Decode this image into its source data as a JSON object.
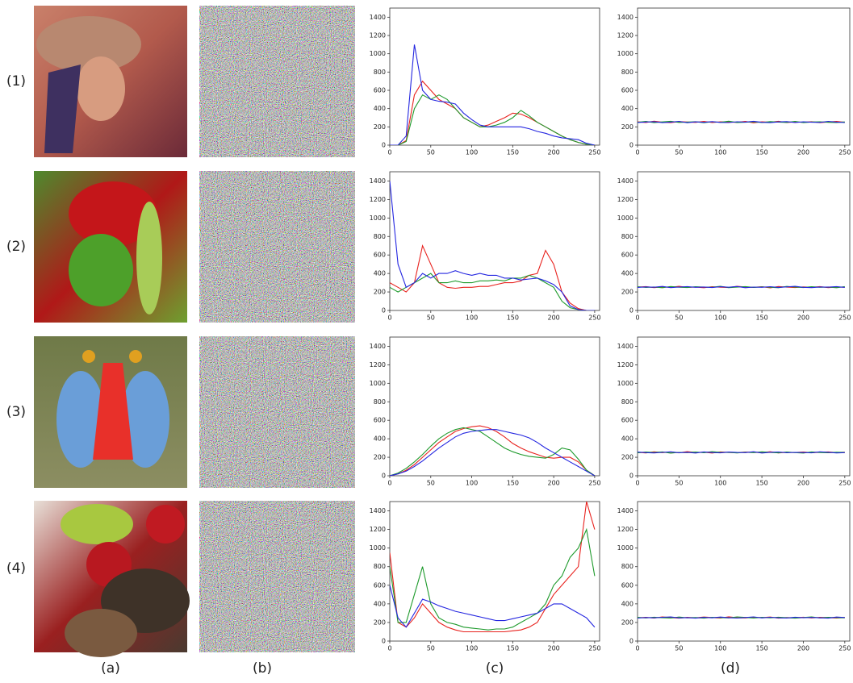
{
  "figure": {
    "row_labels": [
      "(1)",
      "(2)",
      "(3)",
      "(4)"
    ],
    "column_labels": [
      "(a)",
      "(b)",
      "(c)",
      "(d)"
    ]
  },
  "chart_data": [
    {
      "type": "line",
      "x": [
        0,
        10,
        20,
        30,
        40,
        50,
        60,
        70,
        80,
        90,
        100,
        110,
        120,
        130,
        140,
        150,
        160,
        170,
        180,
        190,
        200,
        210,
        220,
        230,
        240,
        250
      ],
      "xlim": [
        0,
        256
      ],
      "xticks": [
        0,
        50,
        100,
        150,
        200,
        250
      ],
      "ylim": [
        0,
        1500
      ],
      "yticks": [
        0,
        200,
        400,
        600,
        800,
        1000,
        1200,
        1400
      ],
      "series": [
        {
          "color": "#e8221e",
          "values": [
            0,
            0,
            50,
            550,
            700,
            600,
            500,
            450,
            400,
            300,
            250,
            200,
            220,
            260,
            300,
            350,
            340,
            300,
            250,
            200,
            150,
            100,
            60,
            30,
            10,
            0
          ]
        },
        {
          "color": "#1e9a2c",
          "values": [
            0,
            0,
            40,
            400,
            550,
            500,
            550,
            500,
            400,
            300,
            250,
            200,
            200,
            220,
            250,
            300,
            380,
            320,
            250,
            200,
            150,
            100,
            60,
            30,
            10,
            0
          ]
        },
        {
          "color": "#2426e0",
          "values": [
            0,
            0,
            100,
            1100,
            600,
            500,
            480,
            470,
            450,
            350,
            280,
            220,
            200,
            200,
            200,
            200,
            200,
            180,
            150,
            130,
            100,
            80,
            70,
            60,
            20,
            0
          ]
        }
      ]
    },
    {
      "type": "line",
      "x": [
        0,
        10,
        20,
        30,
        40,
        50,
        60,
        70,
        80,
        90,
        100,
        110,
        120,
        130,
        140,
        150,
        160,
        170,
        180,
        190,
        200,
        210,
        220,
        230,
        240,
        250
      ],
      "xlim": [
        0,
        256
      ],
      "xticks": [
        0,
        50,
        100,
        150,
        200,
        250
      ],
      "ylim": [
        0,
        1500
      ],
      "yticks": [
        0,
        200,
        400,
        600,
        800,
        1000,
        1200,
        1400
      ],
      "series": [
        {
          "color": "#e8221e",
          "values": [
            255,
            248,
            262,
            251,
            246,
            258,
            253,
            249,
            260,
            247,
            255,
            252,
            250,
            259,
            244,
            256,
            251,
            261,
            248,
            254,
            250,
            257,
            246,
            253,
            259,
            250
          ]
        },
        {
          "color": "#1e9a2c",
          "values": [
            250,
            259,
            246,
            254,
            261,
            249,
            252,
            257,
            245,
            256,
            250,
            262,
            248,
            251,
            255,
            247,
            258,
            252,
            249,
            260,
            246,
            253,
            256,
            250,
            248,
            254
          ]
        },
        {
          "color": "#2426e0",
          "values": [
            248,
            253,
            257,
            246,
            252,
            260,
            245,
            255,
            250,
            258,
            249,
            247,
            256,
            252,
            261,
            250,
            246,
            254,
            258,
            248,
            255,
            251,
            249,
            260,
            252,
            247
          ]
        }
      ]
    },
    {
      "type": "line",
      "x": [
        0,
        10,
        20,
        30,
        40,
        50,
        60,
        70,
        80,
        90,
        100,
        110,
        120,
        130,
        140,
        150,
        160,
        170,
        180,
        190,
        200,
        210,
        220,
        230,
        240,
        250
      ],
      "xlim": [
        0,
        256
      ],
      "xticks": [
        0,
        50,
        100,
        150,
        200,
        250
      ],
      "ylim": [
        0,
        1500
      ],
      "yticks": [
        0,
        200,
        400,
        600,
        800,
        1000,
        1200,
        1400
      ],
      "series": [
        {
          "color": "#e8221e",
          "values": [
            300,
            250,
            200,
            300,
            700,
            500,
            300,
            250,
            240,
            250,
            250,
            260,
            260,
            280,
            300,
            300,
            320,
            380,
            400,
            650,
            500,
            200,
            80,
            20,
            0,
            0
          ]
        },
        {
          "color": "#1e9a2c",
          "values": [
            250,
            200,
            250,
            300,
            350,
            400,
            300,
            300,
            320,
            300,
            300,
            320,
            320,
            330,
            320,
            350,
            350,
            380,
            350,
            300,
            250,
            100,
            30,
            10,
            0,
            0
          ]
        },
        {
          "color": "#2426e0",
          "values": [
            1400,
            500,
            250,
            300,
            400,
            350,
            400,
            400,
            430,
            400,
            380,
            400,
            380,
            380,
            350,
            350,
            330,
            340,
            350,
            320,
            280,
            200,
            50,
            10,
            0,
            0
          ]
        }
      ]
    },
    {
      "type": "line",
      "x": [
        0,
        10,
        20,
        30,
        40,
        50,
        60,
        70,
        80,
        90,
        100,
        110,
        120,
        130,
        140,
        150,
        160,
        170,
        180,
        190,
        200,
        210,
        220,
        230,
        240,
        250
      ],
      "xlim": [
        0,
        256
      ],
      "xticks": [
        0,
        50,
        100,
        150,
        200,
        250
      ],
      "ylim": [
        0,
        1500
      ],
      "yticks": [
        0,
        200,
        400,
        600,
        800,
        1000,
        1200,
        1400
      ],
      "series": [
        {
          "color": "#e8221e",
          "values": [
            252,
            258,
            247,
            255,
            250,
            261,
            249,
            253,
            246,
            257,
            251,
            248,
            262,
            254,
            250,
            256,
            245,
            259,
            252,
            248,
            255,
            250,
            258,
            247,
            253,
            251
          ]
        },
        {
          "color": "#1e9a2c",
          "values": [
            257,
            249,
            254,
            246,
            259,
            251,
            248,
            256,
            253,
            250,
            262,
            247,
            252,
            258,
            249,
            255,
            251,
            246,
            260,
            253,
            248,
            257,
            250,
            254,
            246,
            258
          ]
        },
        {
          "color": "#2426e0",
          "values": [
            249,
            255,
            251,
            260,
            247,
            253,
            258,
            250,
            254,
            248,
            256,
            251,
            259,
            246,
            253,
            250,
            257,
            249,
            255,
            261,
            250,
            247,
            254,
            252,
            258,
            249
          ]
        }
      ]
    },
    {
      "type": "line",
      "x": [
        0,
        10,
        20,
        30,
        40,
        50,
        60,
        70,
        80,
        90,
        100,
        110,
        120,
        130,
        140,
        150,
        160,
        170,
        180,
        190,
        200,
        210,
        220,
        230,
        240,
        250
      ],
      "xlim": [
        0,
        256
      ],
      "xticks": [
        0,
        50,
        100,
        150,
        200,
        250
      ],
      "ylim": [
        0,
        1500
      ],
      "yticks": [
        0,
        200,
        400,
        600,
        800,
        1000,
        1200,
        1400
      ],
      "series": [
        {
          "color": "#e8221e",
          "values": [
            0,
            20,
            60,
            120,
            200,
            280,
            360,
            420,
            480,
            510,
            530,
            540,
            520,
            480,
            420,
            350,
            300,
            260,
            230,
            200,
            190,
            200,
            200,
            150,
            60,
            0
          ]
        },
        {
          "color": "#1e9a2c",
          "values": [
            0,
            30,
            80,
            150,
            230,
            320,
            400,
            460,
            500,
            520,
            500,
            480,
            420,
            360,
            300,
            260,
            230,
            210,
            200,
            190,
            230,
            300,
            280,
            180,
            60,
            0
          ]
        },
        {
          "color": "#2426e0",
          "values": [
            0,
            20,
            50,
            100,
            160,
            230,
            300,
            360,
            420,
            460,
            480,
            490,
            500,
            500,
            480,
            460,
            440,
            410,
            360,
            300,
            250,
            200,
            150,
            100,
            50,
            0
          ]
        }
      ]
    },
    {
      "type": "line",
      "x": [
        0,
        10,
        20,
        30,
        40,
        50,
        60,
        70,
        80,
        90,
        100,
        110,
        120,
        130,
        140,
        150,
        160,
        170,
        180,
        190,
        200,
        210,
        220,
        230,
        240,
        250
      ],
      "xlim": [
        0,
        256
      ],
      "xticks": [
        0,
        50,
        100,
        150,
        200,
        250
      ],
      "ylim": [
        0,
        1500
      ],
      "yticks": [
        0,
        200,
        400,
        600,
        800,
        1000,
        1200,
        1400
      ],
      "series": [
        {
          "color": "#e8221e",
          "values": [
            253,
            247,
            259,
            250,
            256,
            248,
            262,
            251,
            255,
            246,
            258,
            252,
            249,
            257,
            253,
            250,
            260,
            247,
            254,
            251,
            256,
            249,
            253,
            258,
            250,
            255
          ]
        },
        {
          "color": "#1e9a2c",
          "values": [
            248,
            256,
            251,
            258,
            245,
            253,
            250,
            257,
            249,
            261,
            252,
            254,
            247,
            255,
            250,
            259,
            252,
            248,
            256,
            250,
            246,
            258,
            251,
            249,
            255,
            252
          ]
        },
        {
          "color": "#2426e0",
          "values": [
            256,
            250,
            247,
            253,
            259,
            249,
            254,
            246,
            258,
            251,
            248,
            256,
            252,
            250,
            260,
            246,
            254,
            257,
            249,
            253,
            251,
            248,
            259,
            254,
            247,
            250
          ]
        }
      ]
    },
    {
      "type": "line",
      "x": [
        0,
        10,
        20,
        30,
        40,
        50,
        60,
        70,
        80,
        90,
        100,
        110,
        120,
        130,
        140,
        150,
        160,
        170,
        180,
        190,
        200,
        210,
        220,
        230,
        240,
        250
      ],
      "xlim": [
        0,
        256
      ],
      "xticks": [
        0,
        50,
        100,
        150,
        200,
        250
      ],
      "ylim": [
        0,
        1500
      ],
      "yticks": [
        0,
        200,
        400,
        600,
        800,
        1000,
        1200,
        1400
      ],
      "series": [
        {
          "color": "#e8221e",
          "values": [
            950,
            200,
            150,
            250,
            400,
            300,
            200,
            150,
            120,
            100,
            100,
            100,
            100,
            100,
            100,
            110,
            120,
            150,
            200,
            350,
            500,
            600,
            700,
            800,
            1500,
            1200
          ]
        },
        {
          "color": "#1e9a2c",
          "values": [
            800,
            200,
            200,
            500,
            800,
            400,
            250,
            200,
            180,
            150,
            140,
            130,
            120,
            130,
            130,
            150,
            200,
            250,
            300,
            400,
            600,
            700,
            900,
            1000,
            1200,
            700
          ]
        },
        {
          "color": "#2426e0",
          "values": [
            600,
            250,
            150,
            300,
            450,
            420,
            380,
            350,
            320,
            300,
            280,
            260,
            240,
            220,
            220,
            240,
            260,
            280,
            300,
            350,
            400,
            400,
            350,
            300,
            250,
            150
          ]
        }
      ]
    },
    {
      "type": "line",
      "x": [
        0,
        10,
        20,
        30,
        40,
        50,
        60,
        70,
        80,
        90,
        100,
        110,
        120,
        130,
        140,
        150,
        160,
        170,
        180,
        190,
        200,
        210,
        220,
        230,
        240,
        250
      ],
      "xlim": [
        0,
        256
      ],
      "xticks": [
        0,
        50,
        100,
        150,
        200,
        250
      ],
      "ylim": [
        0,
        1500
      ],
      "yticks": [
        0,
        200,
        400,
        600,
        800,
        1000,
        1200,
        1400
      ],
      "series": [
        {
          "color": "#e8221e",
          "values": [
            250,
            256,
            248,
            259,
            252,
            246,
            255,
            250,
            258,
            253,
            247,
            261,
            251,
            249,
            256,
            252,
            258,
            246,
            253,
            250,
            257,
            249,
            255,
            252,
            248,
            254
          ]
        },
        {
          "color": "#1e9a2c",
          "values": [
            255,
            249,
            257,
            251,
            247,
            258,
            250,
            253,
            246,
            256,
            252,
            249,
            260,
            254,
            248,
            255,
            250,
            257,
            251,
            246,
            253,
            259,
            249,
            256,
            252,
            250
          ]
        },
        {
          "color": "#2426e0",
          "values": [
            247,
            253,
            250,
            256,
            259,
            249,
            252,
            246,
            255,
            250,
            258,
            251,
            247,
            253,
            260,
            249,
            256,
            250,
            248,
            257,
            251,
            254,
            250,
            246,
            258,
            253
          ]
        }
      ]
    }
  ]
}
